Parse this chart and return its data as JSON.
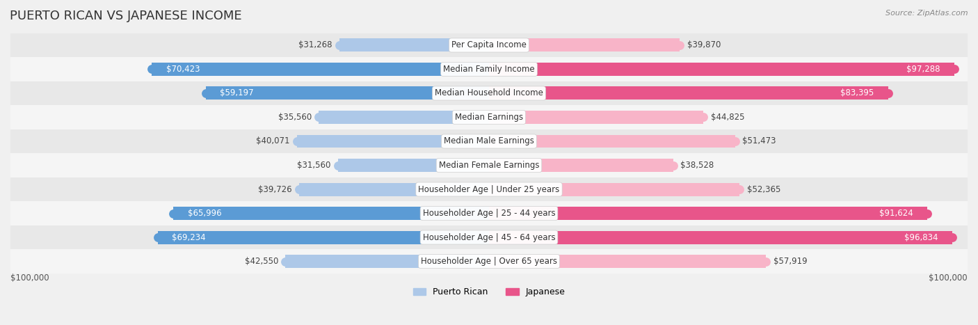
{
  "title": "PUERTO RICAN VS JAPANESE INCOME",
  "source": "Source: ZipAtlas.com",
  "categories": [
    "Per Capita Income",
    "Median Family Income",
    "Median Household Income",
    "Median Earnings",
    "Median Male Earnings",
    "Median Female Earnings",
    "Householder Age | Under 25 years",
    "Householder Age | 25 - 44 years",
    "Householder Age | 45 - 64 years",
    "Householder Age | Over 65 years"
  ],
  "puerto_rican": [
    31268,
    70423,
    59197,
    35560,
    40071,
    31560,
    39726,
    65996,
    69234,
    42550
  ],
  "japanese": [
    39870,
    97288,
    83395,
    44825,
    51473,
    38528,
    52365,
    91624,
    96834,
    57919
  ],
  "max_val": 100000,
  "pr_color_light": "#adc8e8",
  "pr_color_dark": "#5b9bd5",
  "jp_color_light": "#f8b4c8",
  "jp_color_dark": "#e8558a",
  "bg_color": "#f0f0f0",
  "row_colors": [
    "#e8e8e8",
    "#f5f5f5"
  ],
  "title_fontsize": 13,
  "label_fontsize": 8.5,
  "category_fontsize": 8.5,
  "legend_fontsize": 9,
  "bar_height": 0.55,
  "inside_label_threshold_pr": 50000,
  "inside_label_threshold_jp": 65000
}
